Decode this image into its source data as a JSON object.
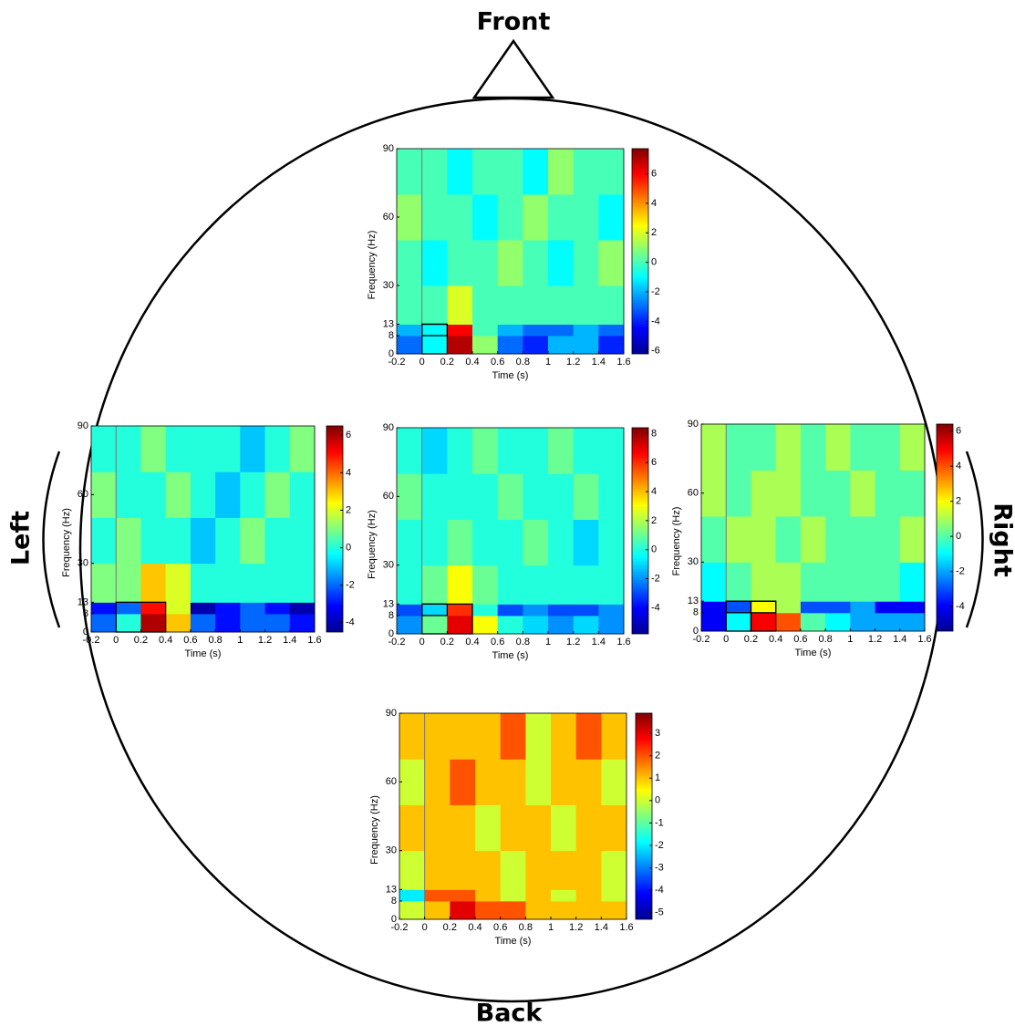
{
  "head_labels": {
    "front": "Front",
    "back": "Back",
    "left": "Left",
    "right": "Right"
  },
  "chart_data": [
    {
      "type": "heatmap",
      "position": "front",
      "xlabel": "Time (s)",
      "ylabel": "Frequency (Hz)",
      "xbins": [
        -0.2,
        0,
        0.2,
        0.4,
        0.6,
        0.8,
        1.0,
        1.2,
        1.4,
        1.6
      ],
      "ybins": [
        0,
        8,
        13,
        30,
        50,
        70,
        90
      ],
      "z": [
        [
          -3,
          -1,
          7,
          1,
          -3,
          -4,
          -2,
          -2,
          -4
        ],
        [
          -2,
          -1,
          6,
          0,
          -2,
          -3,
          -3,
          -2,
          -3
        ],
        [
          0,
          0,
          2,
          0,
          0,
          0,
          0,
          0,
          0
        ],
        [
          0,
          -1,
          0,
          0,
          1,
          0,
          -1,
          0,
          1
        ],
        [
          1,
          0,
          0,
          -1,
          0,
          1,
          0,
          0,
          -1
        ],
        [
          0,
          0,
          -1,
          0,
          0,
          -1,
          1,
          0,
          0
        ]
      ],
      "xlim": [
        -0.2,
        1.6
      ],
      "ylim": [
        0,
        90
      ],
      "xticks": [
        -0.2,
        0,
        0.2,
        0.4,
        0.6,
        0.8,
        1,
        1.2,
        1.4,
        1.6
      ],
      "yticks": [
        0,
        8,
        13,
        30,
        60,
        90
      ],
      "clim": [
        -6.2,
        7.7
      ],
      "cticks": [
        -6,
        -4,
        -2,
        0,
        2,
        4,
        6
      ],
      "colormap": "jet",
      "rois": [
        {
          "x": [
            0,
            0.2
          ],
          "y": [
            8,
            13
          ]
        },
        {
          "x": [
            0,
            0.2
          ],
          "y": [
            0,
            13
          ]
        }
      ]
    },
    {
      "type": "heatmap",
      "position": "left",
      "xlabel": "Time (s)",
      "ylabel": "Frequency (Hz)",
      "xbins": [
        -0.2,
        0,
        0.2,
        0.4,
        0.6,
        0.8,
        1.0,
        1.2,
        1.4,
        1.6
      ],
      "ybins": [
        0,
        8,
        13,
        30,
        50,
        70,
        90
      ],
      "z": [
        [
          -2,
          0,
          6,
          3,
          -2,
          -3,
          -2,
          -2,
          -3
        ],
        [
          -3,
          -2,
          5,
          2,
          -4,
          -3,
          -2,
          -3,
          -4
        ],
        [
          1,
          1,
          3,
          2,
          0,
          0,
          0,
          0,
          0
        ],
        [
          0,
          1,
          0,
          0,
          -1,
          0,
          1,
          0,
          0
        ],
        [
          1,
          0,
          0,
          1,
          0,
          -1,
          0,
          1,
          0
        ],
        [
          0,
          0,
          1,
          0,
          0,
          0,
          -1,
          0,
          1
        ]
      ],
      "xlim": [
        -0.2,
        1.6
      ],
      "ylim": [
        0,
        90
      ],
      "xticks": [
        -0.2,
        0,
        0.2,
        0.4,
        0.6,
        0.8,
        1,
        1.2,
        1.4,
        1.6
      ],
      "yticks": [
        0,
        8,
        13,
        30,
        60,
        90
      ],
      "clim": [
        -4.5,
        6.5
      ],
      "cticks": [
        -4,
        -2,
        0,
        2,
        4,
        6
      ],
      "colormap": "jet",
      "rois": [
        {
          "x": [
            0,
            0.4
          ],
          "y": [
            0,
            13
          ]
        }
      ]
    },
    {
      "type": "heatmap",
      "position": "center",
      "xlabel": "Time (s)",
      "ylabel": "Frequency (Hz)",
      "xbins": [
        -0.2,
        0,
        0.2,
        0.4,
        0.6,
        0.8,
        1.0,
        1.2,
        1.4,
        1.6
      ],
      "ybins": [
        0,
        8,
        13,
        30,
        50,
        70,
        90
      ],
      "z": [
        [
          -2,
          1,
          7,
          3,
          0,
          -1,
          -2,
          -1,
          -2
        ],
        [
          -3,
          -1,
          6,
          0,
          -3,
          -2,
          -3,
          -3,
          -2
        ],
        [
          0,
          1,
          3,
          1,
          0,
          0,
          0,
          0,
          0
        ],
        [
          0,
          0,
          1,
          0,
          0,
          1,
          0,
          -1,
          0
        ],
        [
          1,
          0,
          0,
          0,
          1,
          0,
          0,
          1,
          0
        ],
        [
          0,
          -1,
          0,
          1,
          0,
          0,
          1,
          0,
          0
        ]
      ],
      "xlim": [
        -0.2,
        1.6
      ],
      "ylim": [
        0,
        90
      ],
      "xticks": [
        -0.2,
        0,
        0.2,
        0.4,
        0.6,
        0.8,
        1,
        1.2,
        1.4,
        1.6
      ],
      "yticks": [
        0,
        8,
        13,
        30,
        60,
        90
      ],
      "clim": [
        -5.8,
        8.4
      ],
      "cticks": [
        -4,
        -2,
        0,
        2,
        4,
        6,
        8
      ],
      "colormap": "jet",
      "rois": [
        {
          "x": [
            0,
            0.2
          ],
          "y": [
            8,
            13
          ]
        },
        {
          "x": [
            0,
            0.4
          ],
          "y": [
            0,
            13
          ]
        }
      ]
    },
    {
      "type": "heatmap",
      "position": "right",
      "xlabel": "Time (s)",
      "ylabel": "Frequency (Hz)",
      "xbins": [
        -0.2,
        0,
        0.2,
        0.4,
        0.6,
        0.8,
        1.0,
        1.2,
        1.4,
        1.6
      ],
      "ybins": [
        0,
        8,
        13,
        30,
        50,
        70,
        90
      ],
      "z": [
        [
          -4,
          -1,
          5,
          4,
          0,
          -1,
          -2,
          -2,
          -2
        ],
        [
          -4,
          -3,
          2,
          1,
          -3,
          -3,
          -2,
          -4,
          -4
        ],
        [
          -1,
          0,
          1,
          1,
          0,
          0,
          0,
          0,
          -1
        ],
        [
          0,
          1,
          1,
          0,
          1,
          0,
          0,
          0,
          1
        ],
        [
          1,
          0,
          1,
          1,
          0,
          0,
          1,
          0,
          0
        ],
        [
          1,
          0,
          0,
          1,
          0,
          1,
          0,
          0,
          1
        ]
      ],
      "xlim": [
        -0.2,
        1.6
      ],
      "ylim": [
        0,
        90
      ],
      "xticks": [
        -0.2,
        0,
        0.2,
        0.4,
        0.6,
        0.8,
        1,
        1.2,
        1.4,
        1.6
      ],
      "yticks": [
        0,
        8,
        13,
        30,
        60,
        90
      ],
      "clim": [
        -5.4,
        6.4
      ],
      "cticks": [
        -4,
        -2,
        0,
        2,
        4,
        6
      ],
      "colormap": "jet",
      "rois": [
        {
          "x": [
            0,
            0.2
          ],
          "y": [
            0,
            13
          ]
        },
        {
          "x": [
            0.2,
            0.4
          ],
          "y": [
            0,
            13
          ]
        },
        {
          "x": [
            0,
            0.4
          ],
          "y": [
            8,
            13
          ]
        }
      ]
    },
    {
      "type": "heatmap",
      "position": "back",
      "xlabel": "Time (s)",
      "ylabel": "Frequency (Hz)",
      "xbins": [
        -0.2,
        0,
        0.2,
        0.4,
        0.6,
        0.8,
        1.0,
        1.2,
        1.4,
        1.6
      ],
      "ybins": [
        0,
        8,
        13,
        30,
        50,
        70,
        90
      ],
      "z": [
        [
          0,
          1,
          3,
          2,
          2,
          1,
          1,
          1,
          1
        ],
        [
          -2,
          2,
          2,
          1,
          0,
          1,
          0,
          1,
          0
        ],
        [
          0,
          1,
          1,
          1,
          0,
          1,
          1,
          1,
          0
        ],
        [
          1,
          1,
          1,
          0,
          1,
          1,
          0,
          1,
          1
        ],
        [
          0,
          1,
          2,
          1,
          1,
          0,
          1,
          1,
          0
        ],
        [
          1,
          1,
          1,
          1,
          2,
          0,
          1,
          2,
          1
        ]
      ],
      "xlim": [
        -0.2,
        1.6
      ],
      "ylim": [
        0,
        90
      ],
      "xticks": [
        -0.2,
        0,
        0.2,
        0.4,
        0.6,
        0.8,
        1,
        1.2,
        1.4,
        1.6
      ],
      "yticks": [
        0,
        8,
        13,
        30,
        60,
        90
      ],
      "clim": [
        -5.3,
        3.9
      ],
      "cticks": [
        -5,
        -4,
        -3,
        -2,
        -1,
        0,
        1,
        2,
        3
      ],
      "colormap": "jet",
      "rois": []
    }
  ]
}
